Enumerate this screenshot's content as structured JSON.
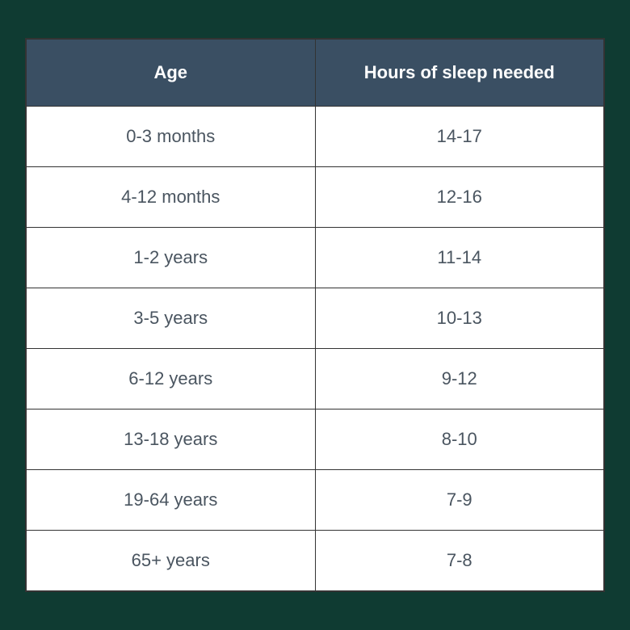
{
  "table": {
    "type": "table",
    "header_background_color": "#3a4f63",
    "header_text_color": "#ffffff",
    "header_fontsize": 22,
    "header_fontweight": 700,
    "cell_text_color": "#4a5560",
    "cell_fontsize": 22,
    "cell_fontweight": 400,
    "cell_background_color": "#ffffff",
    "border_color": "#333333",
    "page_background_color": "#0f3b32",
    "columns": [
      {
        "label": "Age",
        "width": "50%",
        "align": "center"
      },
      {
        "label": "Hours of sleep needed",
        "width": "50%",
        "align": "center"
      }
    ],
    "rows": [
      [
        "0-3 months",
        "14-17"
      ],
      [
        "4-12 months",
        "12-16"
      ],
      [
        "1-2 years",
        "11-14"
      ],
      [
        "3-5 years",
        "10-13"
      ],
      [
        "6-12 years",
        "9-12"
      ],
      [
        "13-18 years",
        "8-10"
      ],
      [
        "19-64 years",
        "7-9"
      ],
      [
        "65+ years",
        "7-8"
      ]
    ]
  }
}
